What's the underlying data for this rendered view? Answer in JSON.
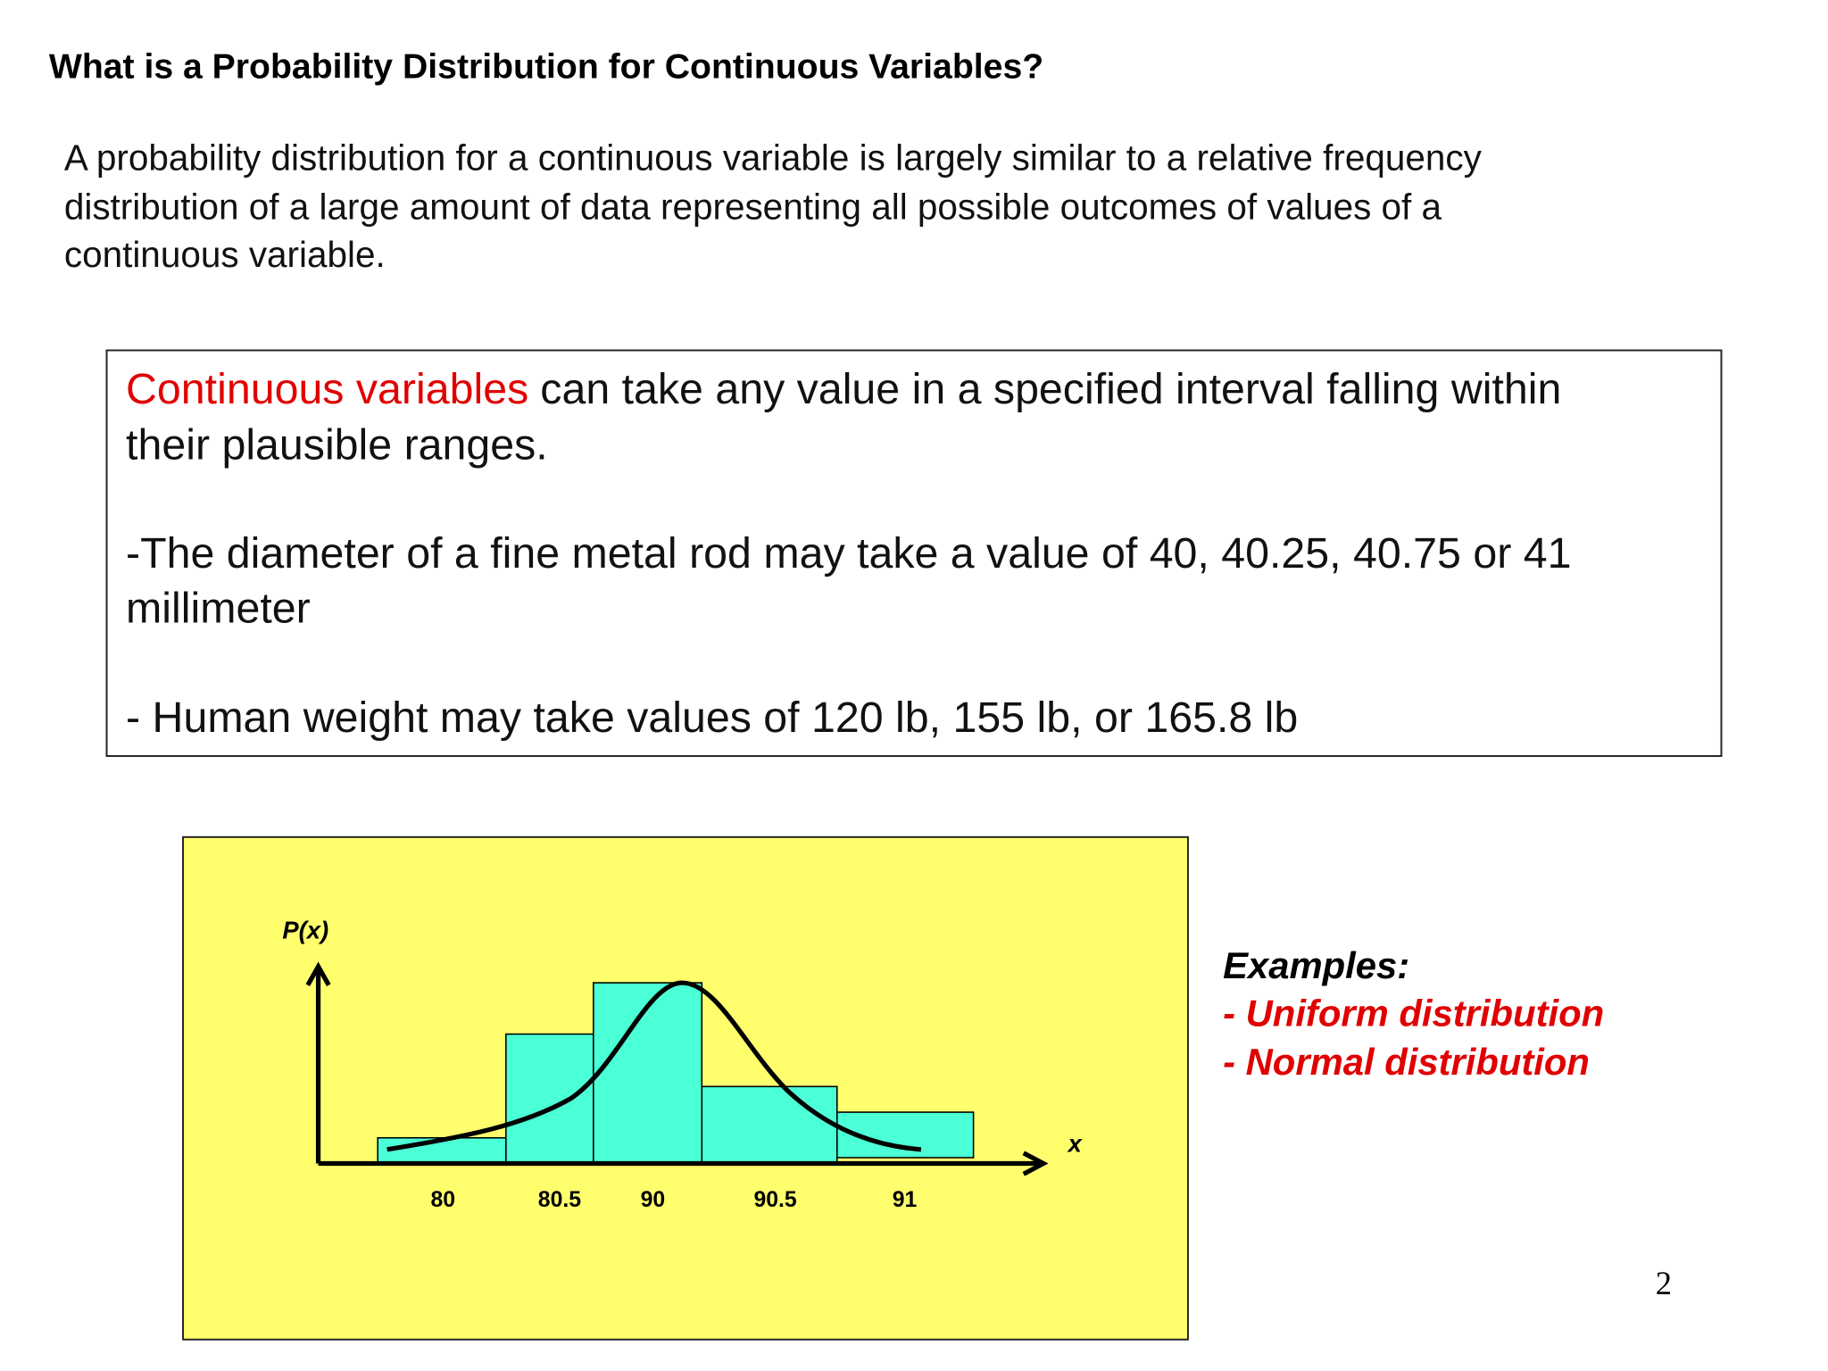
{
  "header": {
    "title": "What is a Probability Distribution for Continuous Variables?"
  },
  "intro": {
    "lines": [
      "A probability distribution for a continuous variable is largely similar to a relative frequency",
      "distribution of a large amount of data representing all possible outcomes of values of a",
      "continuous variable."
    ]
  },
  "definition_box": {
    "highlight": "Continuous variables",
    "lines": [
      "can take any value in a specified interval falling within",
      "their plausible ranges.",
      "-The diameter of a fine metal rod may take a value of 40, 40.25, 40.75 or 41",
      "millimeter",
      "- Human weight may take values of 120 lb, 155 lb, or 165.8 lb"
    ]
  },
  "figure": {
    "y_label": "P(x)",
    "x_label": "x",
    "tick_labels": [
      "80",
      "80.5",
      "90",
      "90.5",
      "91"
    ]
  },
  "examples": {
    "heading": "Examples:",
    "items": [
      "- Uniform distribution",
      "- Normal distribution"
    ]
  },
  "page_number": "2"
}
